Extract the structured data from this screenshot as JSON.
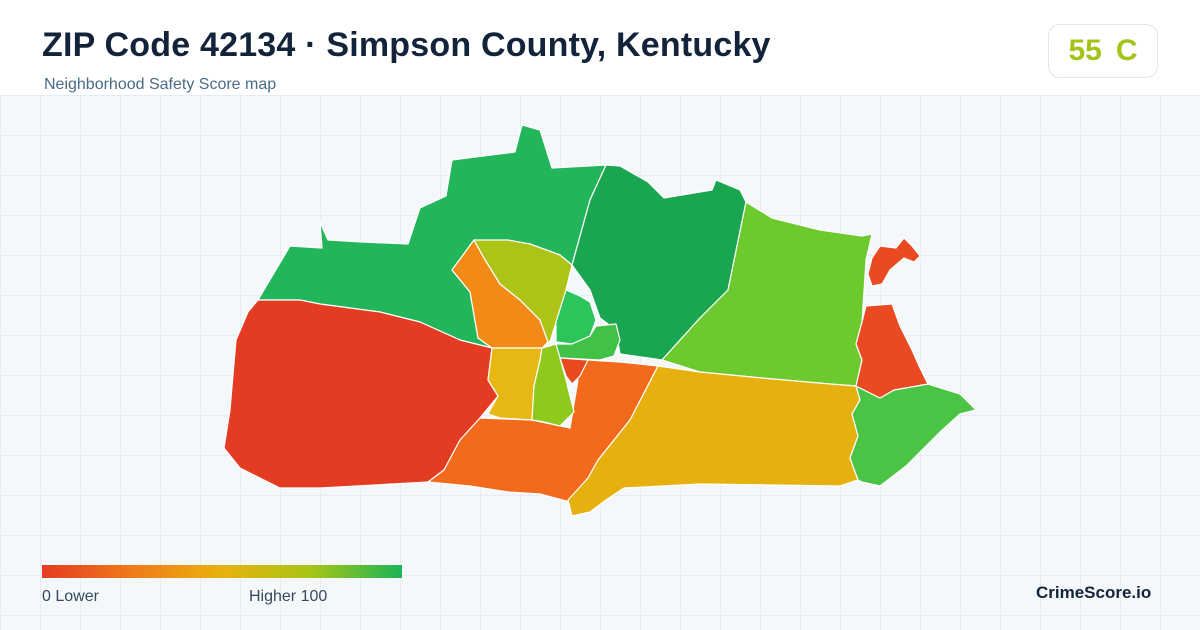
{
  "header": {
    "title": "ZIP Code 42134 · Simpson County, Kentucky",
    "subtitle": "Neighborhood Safety Score map"
  },
  "score": {
    "value": "55",
    "grade": "C",
    "color": "#a3c41a"
  },
  "legend": {
    "low_label": "0  Lower",
    "high_label": "Higher  100",
    "gradient": [
      "#e53b23",
      "#f07a19",
      "#e8b20e",
      "#a6c516",
      "#1cb458"
    ]
  },
  "brand": "CrimeScore.io",
  "map": {
    "region_colors": {
      "north_center": "#22b55a",
      "northeast": "#1aa650",
      "east": "#6cc92e",
      "west": "#e43c22",
      "southwest": "#f36a1c",
      "south": "#e6b10f",
      "southeast": "#4bc445",
      "east_edge": "#ea4a22",
      "far_east_tip": "#ea4a22",
      "downtown_west": "#f28b15",
      "downtown_north": "#aec318",
      "downtown_center": "#2ec45c",
      "downtown_southwest": "#e7b713",
      "downtown_south": "#8ec91c",
      "downtown_east": "#42c147",
      "downtown_sliver": "#e84a20"
    }
  }
}
